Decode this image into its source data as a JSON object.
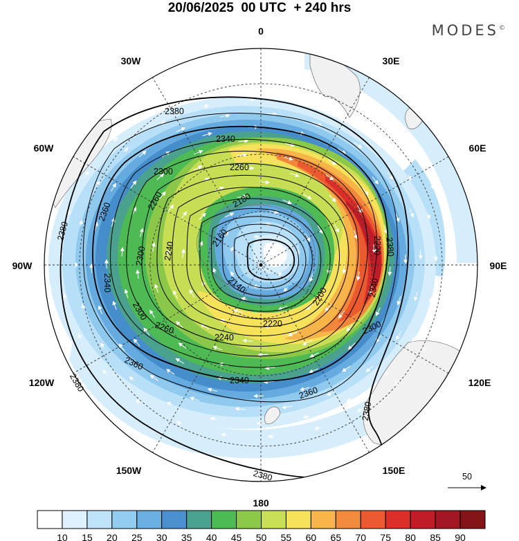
{
  "title": "20/06/2025  00 UTC  + 240 hrs",
  "brand": "MODES",
  "brand_mark": "©",
  "longitude_labels": {
    "top": "0",
    "top_right": "30E",
    "right_upper": "60E",
    "right": "90E",
    "right_lower": "120E",
    "bottom_right": "150E",
    "bottom": "180",
    "bottom_left": "150W",
    "left_lower": "120W",
    "left": "90W",
    "left_upper": "60W",
    "top_left": "30W"
  },
  "contour_labels": {
    "c2380_top": "2380",
    "c2340_top": "2340",
    "c2260_top": "2260",
    "c2300_tl": "2300",
    "c2260_left": "2260",
    "c2180": "2180",
    "c2160": "2160",
    "c2140": "2140",
    "c2240_left": "2240",
    "c2300_left": "2300",
    "c2340_left": "2340",
    "c2360_left": "2360",
    "c2380_left": "2380",
    "c2300_bl": "2300",
    "c2260_bottom": "2260",
    "c2240_bottom": "2240",
    "c2220_bottom": "2220",
    "c2200_right": "2200",
    "c2340_bottom": "2340",
    "c2360_bottom": "2360",
    "c2360_bl": "2360",
    "c2380_bl": "2380",
    "c2380_right": "2380",
    "c2340_right": "2340",
    "c2300_right": "2300",
    "c2360_right_lower": "2360",
    "c2380_right_lower": "2380",
    "c2380_bottom": "2380",
    "c2220_right": "2220"
  },
  "reference_vector": "50",
  "colorbar": {
    "ticks": [
      "10",
      "15",
      "20",
      "25",
      "30",
      "35",
      "40",
      "45",
      "50",
      "55",
      "60",
      "65",
      "70",
      "75",
      "80",
      "85",
      "90"
    ],
    "colors": [
      "#ffffff",
      "#dff1fc",
      "#bfe3f8",
      "#92ccef",
      "#69afe1",
      "#4a8fce",
      "#4aa391",
      "#4dbb54",
      "#8cc94b",
      "#c7de55",
      "#f6e35a",
      "#f7b54a",
      "#f28a3b",
      "#ec5a30",
      "#dc2f2a",
      "#c01d28",
      "#a31624",
      "#851418"
    ]
  },
  "wind_colors": {
    "c15": "#d6eefc",
    "c20": "#b7dff7",
    "c25": "#8fc9ee",
    "c30": "#66abe0",
    "c35": "#468dcc",
    "c40": "#4aa18e",
    "c45": "#4dba53",
    "c50": "#8bc84a",
    "c55": "#c7dd54",
    "c60": "#f5e25a",
    "c65": "#f6b449",
    "c70": "#f1873a",
    "c75": "#eb592f",
    "c80": "#d92e29",
    "c85": "#bd1d28"
  }
}
